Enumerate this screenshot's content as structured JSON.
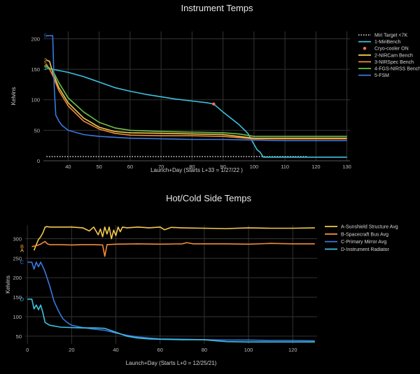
{
  "chart_data": [
    {
      "type": "line",
      "title": "Instrument Temps",
      "xlabel": "Launch+Day (Starts L+33 = 1/27/22 )",
      "ylabel": "Kelvins",
      "xlim": [
        32,
        131
      ],
      "ylim": [
        0,
        212
      ],
      "xticks": [
        40,
        50,
        60,
        70,
        80,
        90,
        100,
        110,
        120,
        130
      ],
      "yticks": [
        0,
        50,
        100,
        150,
        200
      ],
      "grid": true,
      "legend_position": "right",
      "series": [
        {
          "name": "Miri Target <7K",
          "color": "#cccccc",
          "dash": "dot",
          "x": [
            33,
            117
          ],
          "y": [
            7,
            7
          ]
        },
        {
          "name": "1-MiriBench",
          "label": "1",
          "color": "#3ec1e0",
          "x": [
            33,
            35,
            40,
            45,
            50,
            55,
            60,
            65,
            70,
            75,
            80,
            85,
            87,
            90,
            95,
            98,
            100,
            101,
            102,
            103,
            105,
            110,
            115,
            120,
            125,
            130
          ],
          "y": [
            152,
            150,
            145,
            138,
            129,
            120,
            114,
            109,
            105,
            101,
            98,
            95,
            93,
            80,
            60,
            45,
            27,
            18,
            14,
            6,
            6,
            6,
            6,
            6,
            6,
            6
          ]
        },
        {
          "name": "Cryo-cooler ON",
          "color": "#ff6b5b",
          "marker": "circle",
          "x": [
            87
          ],
          "y": [
            93
          ]
        },
        {
          "name": "2-NIRCam Bench",
          "label": "2",
          "color": "#f2c94c",
          "x": [
            33,
            34,
            35,
            37,
            40,
            45,
            50,
            55,
            60,
            70,
            80,
            90,
            95,
            100,
            110,
            120,
            130
          ],
          "y": [
            165,
            163,
            145,
            120,
            95,
            70,
            55,
            48,
            46,
            45,
            44,
            43,
            40,
            37,
            37,
            37,
            37
          ]
        },
        {
          "name": "3-NIRSpec Bench",
          "label": "3",
          "color": "#f28c38",
          "x": [
            33,
            34,
            35,
            37,
            40,
            45,
            50,
            55,
            60,
            70,
            80,
            90,
            95,
            100,
            110,
            120,
            130
          ],
          "y": [
            158,
            150,
            140,
            115,
            90,
            65,
            52,
            45,
            42,
            41,
            41,
            40,
            38,
            36,
            36,
            36,
            36
          ]
        },
        {
          "name": "4-FGS-NIRSS Bench",
          "label": "4",
          "color": "#6cc04a",
          "x": [
            33,
            34,
            35,
            37,
            40,
            45,
            50,
            55,
            60,
            70,
            80,
            90,
            95,
            100,
            110,
            120,
            130
          ],
          "y": [
            155,
            152,
            148,
            128,
            103,
            80,
            63,
            54,
            50,
            48,
            47,
            46,
            44,
            40,
            40,
            40,
            40
          ]
        },
        {
          "name": "5-FSM",
          "label": "5",
          "color": "#3a78e0",
          "x": [
            33,
            35,
            35.5,
            36,
            37,
            38,
            40,
            45,
            50,
            60,
            70,
            80,
            90,
            100,
            110,
            120,
            130
          ],
          "y": [
            205,
            205,
            120,
            75,
            65,
            58,
            50,
            43,
            40,
            37,
            36,
            35,
            35,
            34,
            33,
            33,
            33
          ]
        }
      ]
    },
    {
      "type": "line",
      "title": "Hot/Cold Side Temps",
      "xlabel": "Launch+Day (Starts L+0 = 12/25/21)",
      "ylabel": "Kelvins",
      "xlim": [
        -1,
        131
      ],
      "ylim": [
        30,
        335
      ],
      "xticks": [
        0,
        20,
        40,
        60,
        80,
        100,
        120
      ],
      "yticks": [
        50,
        100,
        150,
        200,
        250,
        300
      ],
      "grid": true,
      "legend_position": "right",
      "series": [
        {
          "name": "A-Sunshield Structure Avg",
          "label": "A",
          "color": "#f2c94c",
          "x": [
            3,
            4,
            5,
            6,
            7,
            8,
            9,
            10,
            15,
            20,
            25,
            28,
            30,
            32,
            33,
            34,
            35,
            36,
            37,
            38,
            39,
            40,
            41,
            42,
            43,
            45,
            50,
            55,
            60,
            62,
            65,
            70,
            80,
            90,
            100,
            110,
            120,
            130
          ],
          "y": [
            270,
            285,
            298,
            305,
            315,
            330,
            331,
            330,
            330,
            330,
            328,
            320,
            330,
            310,
            325,
            305,
            330,
            312,
            330,
            300,
            322,
            308,
            330,
            318,
            330,
            328,
            330,
            328,
            330,
            323,
            329,
            328,
            327,
            326,
            328,
            327,
            327,
            328
          ]
        },
        {
          "name": "B-Spacecraft Bus Avg",
          "label": "B",
          "color": "#f28c38",
          "x": [
            2,
            4,
            6,
            7,
            8,
            9,
            10,
            15,
            20,
            25,
            30,
            34,
            35,
            36,
            40,
            50,
            60,
            70,
            72,
            75,
            80,
            90,
            100,
            110,
            120,
            130
          ],
          "y": [
            280,
            282,
            286,
            290,
            293,
            287,
            285,
            285,
            284,
            285,
            285,
            284,
            255,
            285,
            286,
            287,
            286,
            287,
            290,
            287,
            287,
            287,
            286,
            288,
            287,
            287
          ]
        },
        {
          "name": "C-Primary Mirror Avg",
          "label": "C",
          "color": "#3a78e0",
          "x": [
            0,
            2,
            3,
            4,
            5,
            6,
            7,
            8,
            10,
            12,
            14,
            16,
            18,
            20,
            25,
            30,
            35,
            40,
            45,
            50,
            55,
            60,
            70,
            80,
            90,
            100,
            110,
            120,
            130
          ],
          "y": [
            240,
            240,
            222,
            240,
            228,
            240,
            228,
            215,
            180,
            140,
            115,
            95,
            85,
            78,
            72,
            68,
            65,
            58,
            52,
            48,
            45,
            43,
            42,
            41,
            40,
            40,
            39,
            39,
            38
          ]
        },
        {
          "name": "D-Instrument Radiator",
          "label": "D",
          "color": "#3ec1e0",
          "x": [
            0,
            2,
            3,
            4,
            5,
            6,
            7,
            8,
            10,
            15,
            20,
            25,
            30,
            35,
            40,
            45,
            50,
            55,
            60,
            70,
            80,
            85,
            90,
            100,
            110,
            120,
            130
          ],
          "y": [
            145,
            145,
            120,
            130,
            118,
            130,
            110,
            85,
            78,
            73,
            72,
            71,
            71,
            70,
            60,
            50,
            45,
            43,
            42,
            41,
            41,
            38,
            36,
            35,
            35,
            35,
            35
          ]
        }
      ]
    }
  ]
}
